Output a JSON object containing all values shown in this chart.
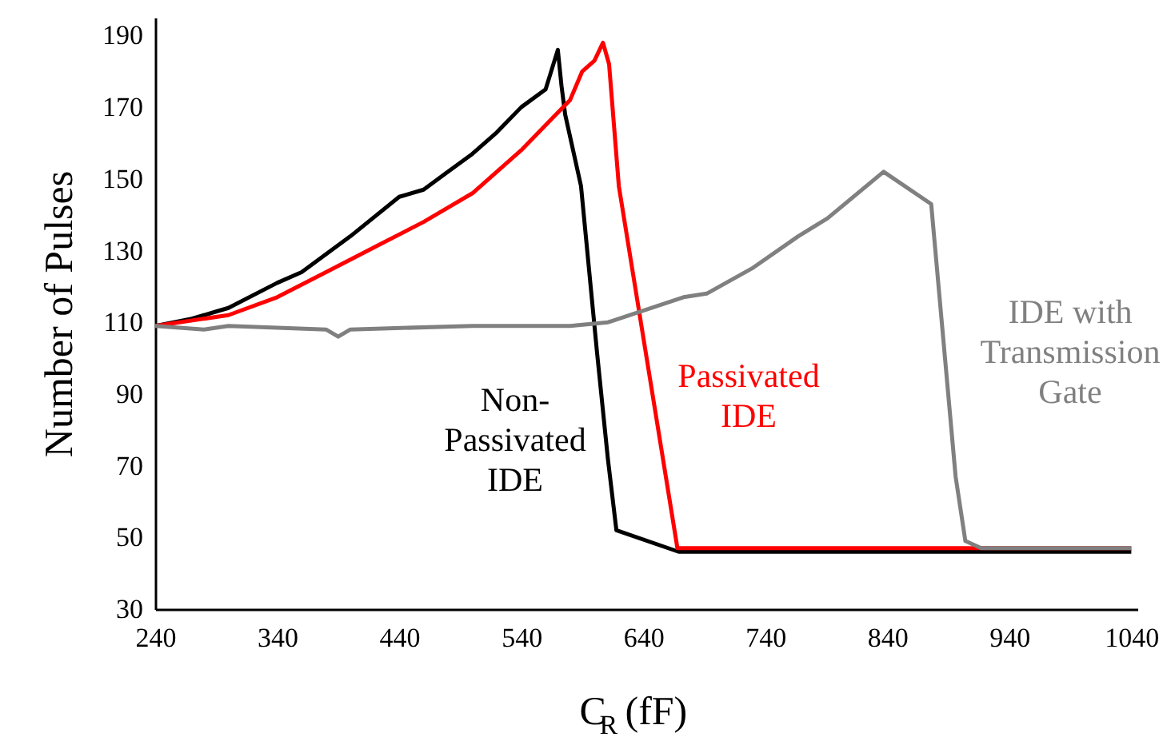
{
  "chart_data": {
    "type": "line",
    "xlabel": "C$_{R}$ (fF)",
    "ylabel": "Number of Pulses",
    "xlim": [
      240,
      1045
    ],
    "xticks": [
      240,
      340,
      440,
      540,
      640,
      740,
      840,
      940,
      1040
    ],
    "ylim": [
      30,
      195
    ],
    "yticks": [
      30,
      50,
      70,
      90,
      110,
      130,
      150,
      170,
      190
    ],
    "line_style": "solid",
    "series": [
      {
        "name": "Non-Passivated IDE",
        "color": "#000000",
        "x": [
          240,
          270,
          290,
          300,
          340,
          360,
          380,
          400,
          440,
          460,
          480,
          500,
          520,
          540,
          560,
          570,
          573,
          576,
          589,
          602,
          611,
          618,
          669,
          1040
        ],
        "values": [
          109,
          111,
          113,
          114,
          121,
          124,
          129,
          134,
          145,
          147,
          152,
          157,
          163,
          170,
          175,
          186,
          176,
          168,
          148,
          102,
          72,
          52,
          46,
          46
        ]
      },
      {
        "name": "Passivated IDE",
        "color": "#ff0000",
        "x": [
          240,
          300,
          340,
          380,
          420,
          460,
          500,
          540,
          560,
          580,
          590,
          600,
          607,
          612,
          620,
          668,
          1040
        ],
        "values": [
          109,
          112,
          117,
          124,
          131,
          138,
          146,
          158,
          165,
          172,
          180,
          183,
          188,
          182,
          148,
          47,
          47
        ]
      },
      {
        "name": "IDE with Transmission Gate",
        "color": "#808080",
        "x": [
          240,
          280,
          300,
          380,
          390,
          400,
          500,
          580,
          611,
          673,
          692,
          729,
          767,
          791,
          837,
          876,
          896,
          904,
          917,
          1040
        ],
        "values": [
          109,
          108,
          109,
          108,
          106,
          108,
          109,
          109,
          110,
          117,
          118,
          125,
          134,
          139,
          152,
          143,
          67,
          49,
          47,
          47
        ]
      }
    ]
  }
}
